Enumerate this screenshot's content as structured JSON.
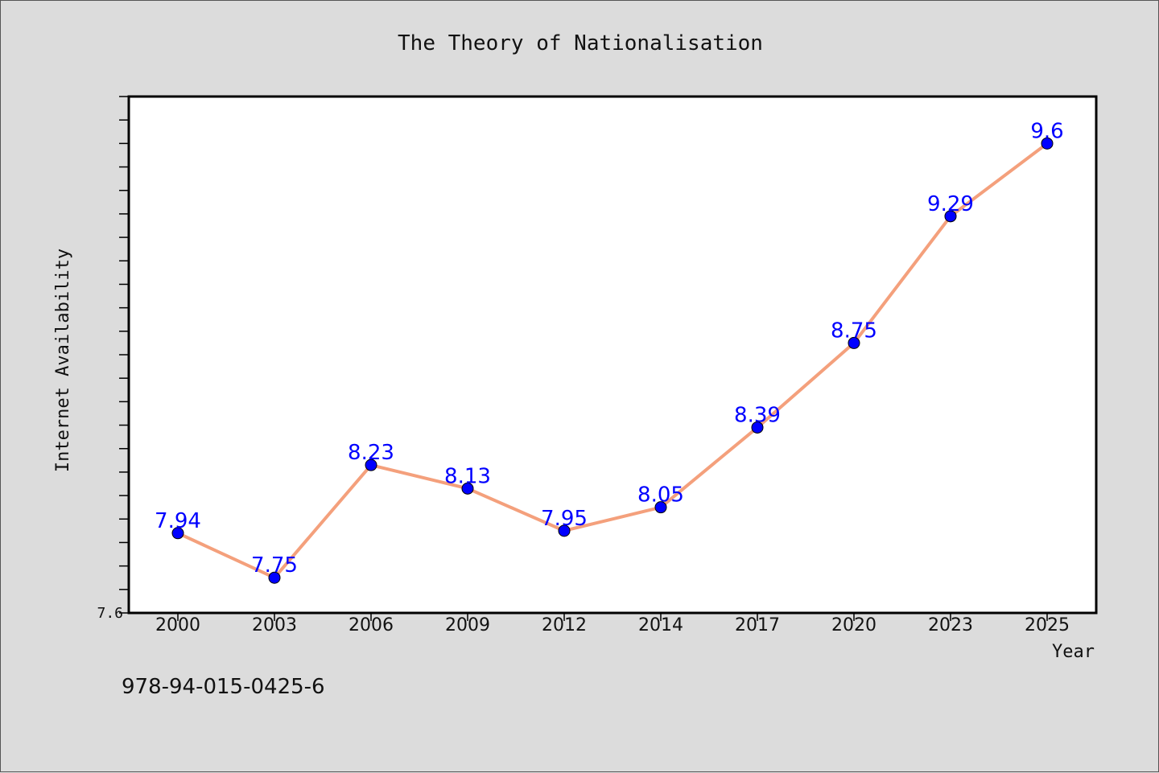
{
  "chart_data": {
    "type": "line",
    "title": "The Theory of Nationalisation",
    "xlabel": "Year",
    "ylabel": "Internet Availability",
    "categories": [
      "2000",
      "2003",
      "2006",
      "2009",
      "2012",
      "2014",
      "2017",
      "2020",
      "2023",
      "2025"
    ],
    "series": [
      {
        "values": [
          7.94,
          7.75,
          8.23,
          8.13,
          7.95,
          8.05,
          8.39,
          8.75,
          9.29,
          9.6
        ]
      }
    ],
    "data_labels": [
      "7.94",
      "7.75",
      "8.23",
      "8.13",
      "7.95",
      "8.05",
      "8.39",
      "8.75",
      "9.29",
      "9.6"
    ],
    "ylim": [
      7.6,
      9.8
    ],
    "yticks_labeled": [
      "7.6"
    ],
    "grid": false,
    "line_color": "#f4a07c",
    "marker_color": "#0000ff",
    "label_color": "#0000ff",
    "plot_background": "#ffffff",
    "figure_background": "#dcdcdc"
  },
  "footer": {
    "text": "978-94-015-0425-6"
  }
}
